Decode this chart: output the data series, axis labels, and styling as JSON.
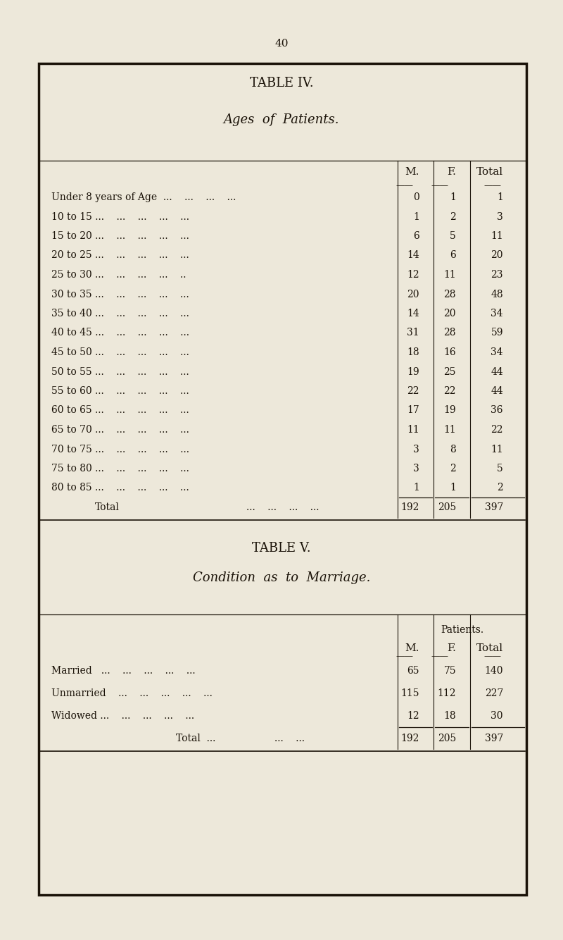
{
  "page_number": "40",
  "outer_bg": "#ede8da",
  "inner_bg": "#ede8da",
  "table4_title": "TABLE IV.",
  "table4_subtitle": "Ages  of  Patients.",
  "table4_col_headers": [
    "M.",
    "F.",
    "Total"
  ],
  "table4_rows": [
    {
      "label": "Under 8 years of Age  ...    ...    ...    ...",
      "m": "0",
      "f": "1",
      "total": "1"
    },
    {
      "label": "10 to 15 ...    ...    ...    ...    ...",
      "m": "1",
      "f": "2",
      "total": "3"
    },
    {
      "label": "15 to 20 ...    ...    ...    ...    ...",
      "m": "6",
      "f": "5",
      "total": "11"
    },
    {
      "label": "20 to 25 ...    ...    ...    ...    ...",
      "m": "14",
      "f": "6",
      "total": "20"
    },
    {
      "label": "25 to 30 ...    ...    ...    ...    ..",
      "m": "12",
      "f": "11",
      "total": "23"
    },
    {
      "label": "30 to 35 ...    ...    ...    ...    ...",
      "m": "20",
      "f": "28",
      "total": "48"
    },
    {
      "label": "35 to 40 ...    ...    ...    ...    ...",
      "m": "14",
      "f": "20",
      "total": "34"
    },
    {
      "label": "40 to 45 ...    ...    ...    ...    ...",
      "m": "31",
      "f": "28",
      "total": "59"
    },
    {
      "label": "45 to 50 ...    ...    ...    ...    ...",
      "m": "18",
      "f": "16",
      "total": "34"
    },
    {
      "label": "50 to 55 ...    ...    ...    ...    ...",
      "m": "19",
      "f": "25",
      "total": "44"
    },
    {
      "label": "55 to 60 ...    ...    ...    ...    ...",
      "m": "22",
      "f": "22",
      "total": "44"
    },
    {
      "label": "60 to 65 ...    ...    ...    ...    ...",
      "m": "17",
      "f": "19",
      "total": "36"
    },
    {
      "label": "65 to 70 ...    ...    ...    ...    ...",
      "m": "11",
      "f": "11",
      "total": "22"
    },
    {
      "label": "70 to 75 ...    ...    ...    ...    ...",
      "m": "3",
      "f": "8",
      "total": "11"
    },
    {
      "label": "75 to 80 ...    ...    ...    ...    ...",
      "m": "3",
      "f": "2",
      "total": "5"
    },
    {
      "label": "80 to 85 ...    ...    ...    ...    ...",
      "m": "1",
      "f": "1",
      "total": "2"
    }
  ],
  "table4_total_m": "192",
  "table4_total_f": "205",
  "table4_total": "397",
  "table5_title": "TABLE V.",
  "table5_subtitle": "Condition  as  to  Marriage.",
  "table5_patients_header": "Patients.",
  "table5_col_headers": [
    "M.",
    "F.",
    "Total"
  ],
  "table5_rows": [
    {
      "label": "Married   ...    ...    ...    ...    ...",
      "m": "65",
      "f": "75",
      "total": "140"
    },
    {
      "label": "Unmarried    ...    ...    ...    ...    ...",
      "m": "115",
      "f": "112",
      "total": "227"
    },
    {
      "label": "Widowed ...    ...    ...    ...    ...",
      "m": "12",
      "f": "18",
      "total": "30"
    }
  ],
  "table5_total_m": "192",
  "table5_total_f": "205",
  "table5_total": "397",
  "text_color": "#1a1208",
  "line_color": "#1a1208",
  "border_color": "#1a1208"
}
